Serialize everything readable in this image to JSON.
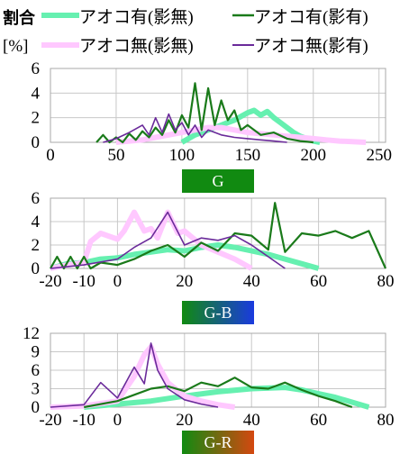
{
  "colors": {
    "series_1": "#66f0b0",
    "series_2": "#1a7a1a",
    "series_3": "#ffc8ff",
    "series_4": "#6a2a9a",
    "grid": "#c8c8c8",
    "badge_g": "#118a11",
    "badge_gb_start": "#118a11",
    "badge_gb_end": "#1a3adf",
    "badge_gr_start": "#118a11",
    "badge_gr_end": "#d44810"
  },
  "legend": {
    "ylabel_main": "割合",
    "ylabel_unit": "[%]",
    "items": [
      {
        "key": "s1",
        "label": "アオコ有(影無)"
      },
      {
        "key": "s2",
        "label": "アオコ有(影有)"
      },
      {
        "key": "s3",
        "label": "アオコ無(影無)"
      },
      {
        "key": "s4",
        "label": "アオコ無(影有)"
      }
    ]
  },
  "chart_data": [
    {
      "type": "line",
      "xlabel": "G",
      "xlim": [
        0,
        255
      ],
      "ylim": [
        0,
        6
      ],
      "xticks": [
        0,
        50,
        100,
        150,
        200,
        250
      ],
      "yticks": [
        0,
        2,
        4,
        6
      ],
      "xtick_labels": [
        "0",
        "50",
        "100",
        "150",
        "200",
        "250"
      ],
      "ytick_labels": [
        "0",
        "2",
        "4",
        "6"
      ],
      "grid": true,
      "series": [
        {
          "key": "s1",
          "x": [
            100,
            105,
            110,
            115,
            120,
            125,
            130,
            135,
            140,
            145,
            150,
            155,
            160,
            165,
            170,
            175,
            180,
            185,
            190,
            195,
            200,
            205
          ],
          "y": [
            0,
            0.3,
            0.6,
            0.8,
            1,
            1.2,
            1.4,
            1.6,
            1.8,
            2.1,
            2.4,
            2.6,
            2.2,
            2.5,
            2,
            1.6,
            1.2,
            0.8,
            0.5,
            0.3,
            0.1,
            0
          ]
        },
        {
          "key": "s2",
          "x": [
            35,
            40,
            45,
            50,
            55,
            60,
            65,
            70,
            75,
            80,
            85,
            90,
            95,
            100,
            105,
            110,
            115,
            120,
            125,
            130,
            135,
            140,
            145,
            150,
            160,
            170,
            180,
            190,
            200
          ],
          "y": [
            0,
            0.6,
            0,
            0.4,
            0,
            0.7,
            0.2,
            0.9,
            0.4,
            1.2,
            0.6,
            1.8,
            0.8,
            2.2,
            1.2,
            4.8,
            1.0,
            4.4,
            1.4,
            3.4,
            1.8,
            2.6,
            1.0,
            1.4,
            0.6,
            0.8,
            0.3,
            0.1,
            0
          ]
        },
        {
          "key": "s3",
          "x": [
            50,
            60,
            70,
            80,
            90,
            100,
            110,
            120,
            130,
            140,
            150,
            160,
            170,
            180,
            190,
            200,
            210,
            220,
            230,
            240
          ],
          "y": [
            0,
            0.1,
            0.2,
            0.4,
            0.6,
            0.8,
            1.0,
            1.2,
            1.2,
            1.0,
            0.8,
            0.7,
            0.6,
            0.5,
            0.4,
            0.3,
            0.2,
            0.1,
            0.05,
            0
          ]
        },
        {
          "key": "s4",
          "x": [
            40,
            50,
            60,
            70,
            75,
            80,
            85,
            90,
            95,
            100,
            105,
            110,
            115,
            120,
            130,
            140,
            150,
            160,
            170,
            180
          ],
          "y": [
            0,
            0.3,
            0.8,
            1.4,
            0.6,
            2.0,
            0.8,
            2.3,
            1.0,
            1.6,
            0.6,
            1.4,
            0.4,
            1.0,
            0.6,
            0.4,
            0.3,
            0.2,
            0.1,
            0
          ]
        }
      ]
    },
    {
      "type": "line",
      "xlabel": "G-B",
      "xlim": [
        -20,
        80
      ],
      "ylim": [
        0,
        6
      ],
      "xticks": [
        -20,
        -10,
        0,
        20,
        40,
        60,
        80
      ],
      "yticks": [
        0,
        2,
        4,
        6
      ],
      "xtick_labels": [
        "-20",
        "-10",
        "0",
        "20",
        "40",
        "60",
        "80"
      ],
      "ytick_labels": [
        "0",
        "2",
        "4",
        "6"
      ],
      "grid": true,
      "series": [
        {
          "key": "s1",
          "x": [
            -20,
            -15,
            -10,
            -5,
            0,
            5,
            10,
            15,
            20,
            25,
            30,
            35,
            40,
            45,
            50,
            55,
            60
          ],
          "y": [
            0,
            0.4,
            0.5,
            0.8,
            0.9,
            1.2,
            1.4,
            1.6,
            1.5,
            1.8,
            2.0,
            1.8,
            1.5,
            1.2,
            0.8,
            0.4,
            0
          ]
        },
        {
          "key": "s2",
          "x": [
            -20,
            -18,
            -16,
            -14,
            -12,
            -10,
            -8,
            -5,
            0,
            5,
            10,
            15,
            20,
            25,
            30,
            35,
            40,
            45,
            47,
            50,
            55,
            60,
            65,
            70,
            75,
            80
          ],
          "y": [
            0,
            1.0,
            0,
            1.0,
            0,
            1.0,
            0,
            0.5,
            0.3,
            0.8,
            1.5,
            2.0,
            1.0,
            2.2,
            1.5,
            3.0,
            2.8,
            1.6,
            5.6,
            1.4,
            3.0,
            2.8,
            3.2,
            2.6,
            3.2,
            0
          ]
        },
        {
          "key": "s3",
          "x": [
            -20,
            -15,
            -10,
            -8,
            -5,
            0,
            2,
            5,
            8,
            10,
            12,
            15,
            18,
            20,
            25,
            30,
            35,
            40
          ],
          "y": [
            0,
            0.3,
            0.5,
            2.3,
            3.0,
            2.5,
            3.2,
            4.8,
            3.2,
            3.4,
            2.6,
            4.8,
            3.0,
            3.2,
            2.0,
            1.4,
            0.8,
            0
          ]
        },
        {
          "key": "s4",
          "x": [
            -20,
            -10,
            0,
            5,
            10,
            15,
            20,
            25,
            30,
            35,
            40,
            45,
            50
          ],
          "y": [
            0,
            0.3,
            0.8,
            1.8,
            2.6,
            4.8,
            2.0,
            2.6,
            2.4,
            2.8,
            2.0,
            1.0,
            0
          ]
        }
      ]
    },
    {
      "type": "line",
      "xlabel": "G-R",
      "xlim": [
        -20,
        80
      ],
      "ylim": [
        0,
        12
      ],
      "xticks": [
        -20,
        -10,
        0,
        20,
        40,
        60,
        80
      ],
      "yticks": [
        0,
        3,
        6,
        9,
        12
      ],
      "xtick_labels": [
        "-20",
        "-10",
        "0",
        "20",
        "40",
        "60",
        "80"
      ],
      "ytick_labels": [
        "0",
        "3",
        "6",
        "9",
        "12"
      ],
      "grid": true,
      "series": [
        {
          "key": "s1",
          "x": [
            -10,
            0,
            10,
            20,
            30,
            40,
            50,
            55,
            60,
            65,
            70,
            75
          ],
          "y": [
            0,
            0.5,
            1.0,
            1.8,
            2.5,
            3.0,
            3.2,
            2.8,
            2.2,
            1.6,
            0.8,
            0
          ]
        },
        {
          "key": "s2",
          "x": [
            -10,
            0,
            5,
            10,
            15,
            20,
            25,
            30,
            35,
            40,
            45,
            50,
            55,
            60,
            65,
            70
          ],
          "y": [
            0,
            1.0,
            2.0,
            3.0,
            3.4,
            2.6,
            4.0,
            3.4,
            4.8,
            3.2,
            3.0,
            4.0,
            2.8,
            1.8,
            1.0,
            0
          ]
        },
        {
          "key": "s3",
          "x": [
            -20,
            -10,
            0,
            5,
            8,
            10,
            12,
            15,
            20,
            25,
            30,
            35
          ],
          "y": [
            0,
            0.2,
            1.0,
            5.0,
            8.5,
            9.8,
            7.0,
            4.0,
            1.8,
            1.0,
            0.4,
            0
          ]
        },
        {
          "key": "s4",
          "x": [
            -20,
            -10,
            -5,
            0,
            5,
            8,
            10,
            12,
            15,
            20,
            25,
            30
          ],
          "y": [
            0,
            0.4,
            4.0,
            1.5,
            6.5,
            3.8,
            10.4,
            6.0,
            3.0,
            1.2,
            0.5,
            0
          ]
        }
      ]
    }
  ]
}
